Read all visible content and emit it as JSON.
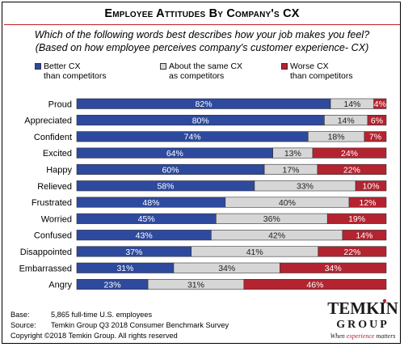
{
  "title": "Employee Attitudes By Company's CX",
  "subtitle_line1": "Which of the following words best describes how your job makes you feel?",
  "subtitle_line2": "(Based on how employee perceives company's customer experience- CX)",
  "legend": [
    {
      "line1": "Better CX",
      "line2": "than competitors",
      "color": "#2e4a9e"
    },
    {
      "line1": "About the same CX",
      "line2": "as competitors",
      "color": "#d6d6d6"
    },
    {
      "line1": "Worse CX",
      "line2": "than competitors",
      "color": "#b32430"
    }
  ],
  "chart_data": {
    "type": "bar",
    "orientation": "horizontal",
    "stacked": true,
    "categories": [
      "Proud",
      "Appreciated",
      "Confident",
      "Excited",
      "Happy",
      "Relieved",
      "Frustrated",
      "Worried",
      "Confused",
      "Disappointed",
      "Embarrassed",
      "Angry"
    ],
    "series": [
      {
        "name": "Better CX than competitors",
        "color": "#2e4a9e",
        "values": [
          82,
          80,
          74,
          64,
          60,
          58,
          48,
          45,
          43,
          37,
          31,
          23
        ]
      },
      {
        "name": "About the same CX as competitors",
        "color": "#d6d6d6",
        "values": [
          14,
          14,
          18,
          13,
          17,
          33,
          40,
          36,
          42,
          41,
          34,
          31
        ]
      },
      {
        "name": "Worse CX than competitors",
        "color": "#b32430",
        "values": [
          4,
          6,
          7,
          24,
          22,
          10,
          12,
          19,
          14,
          22,
          34,
          46
        ]
      }
    ],
    "value_suffix": "%",
    "legend_position": "top",
    "grid": false
  },
  "footer": {
    "base_label": "Base:",
    "base_text": "5,865  full-time U.S. employees",
    "source_label": "Source:",
    "source_text": "Temkin Group Q3 2018  Consumer  Benchmark  Survey",
    "copyright": "Copyright  ©2018 Temkin Group.  All rights reserved"
  },
  "logo": {
    "line1": "TEMKIN",
    "line2": "GROUP",
    "tagline_start": "When ",
    "tagline_accent": "experience",
    "tagline_end": " matters",
    "accent_color": "#c0202a"
  }
}
